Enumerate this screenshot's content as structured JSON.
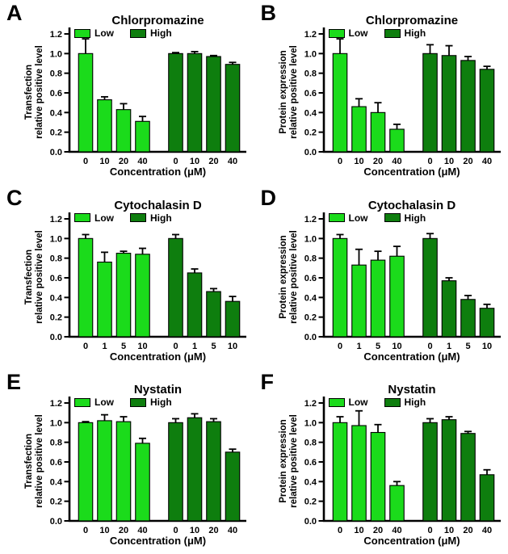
{
  "figure": {
    "background": "#ffffff",
    "colors": {
      "low": "#1bdb1b",
      "high": "#0e7e0e",
      "axis": "#000000",
      "error_bar": "#000000",
      "bar_border": "#000000",
      "text": "#000000"
    },
    "legend": {
      "position": "top-left inside plot",
      "low_label": "Low",
      "high_label": "High"
    },
    "grid": false,
    "ylim": [
      0,
      1.2
    ]
  },
  "chart_data": [
    {
      "type": "bar",
      "letter": "A",
      "title": "Chlorpromazine",
      "ylabel_line1": "Transfection",
      "ylabel_line2": "relative positive level",
      "xlabel": "Concentration (μM)",
      "categories": [
        "0",
        "10",
        "20",
        "40"
      ],
      "series": [
        {
          "name": "Low",
          "color_key": "low",
          "values": [
            1.0,
            0.53,
            0.43,
            0.31
          ],
          "errors": [
            0.15,
            0.03,
            0.06,
            0.05
          ]
        },
        {
          "name": "High",
          "color_key": "high",
          "values": [
            1.0,
            1.0,
            0.97,
            0.89
          ],
          "errors": [
            0.01,
            0.02,
            0.01,
            0.02
          ]
        }
      ],
      "ylim": [
        0,
        1.2
      ],
      "yticks": [
        0,
        0.2,
        0.4,
        0.6,
        0.8,
        1.0,
        1.2
      ]
    },
    {
      "type": "bar",
      "letter": "B",
      "title": "Chlorpromazine",
      "ylabel_line1": "Protein expression",
      "ylabel_line2": "relative positive level",
      "xlabel": "Concentration (μM)",
      "categories": [
        "0",
        "10",
        "20",
        "40"
      ],
      "series": [
        {
          "name": "Low",
          "color_key": "low",
          "values": [
            1.0,
            0.46,
            0.4,
            0.23
          ],
          "errors": [
            0.15,
            0.08,
            0.1,
            0.05
          ]
        },
        {
          "name": "High",
          "color_key": "high",
          "values": [
            1.0,
            0.98,
            0.93,
            0.84
          ],
          "errors": [
            0.09,
            0.1,
            0.04,
            0.03
          ]
        }
      ],
      "ylim": [
        0,
        1.2
      ],
      "yticks": [
        0,
        0.2,
        0.4,
        0.6,
        0.8,
        1.0,
        1.2
      ]
    },
    {
      "type": "bar",
      "letter": "C",
      "title": "Cytochalasin D",
      "ylabel_line1": "Transfection",
      "ylabel_line2": "relative positive level",
      "xlabel": "Concentration (μM)",
      "categories": [
        "0",
        "1",
        "5",
        "10"
      ],
      "series": [
        {
          "name": "Low",
          "color_key": "low",
          "values": [
            1.0,
            0.76,
            0.85,
            0.84
          ],
          "errors": [
            0.04,
            0.1,
            0.02,
            0.06
          ]
        },
        {
          "name": "High",
          "color_key": "high",
          "values": [
            1.0,
            0.65,
            0.46,
            0.36
          ],
          "errors": [
            0.04,
            0.04,
            0.03,
            0.05
          ]
        }
      ],
      "ylim": [
        0,
        1.2
      ],
      "yticks": [
        0,
        0.2,
        0.4,
        0.6,
        0.8,
        1.0,
        1.2
      ]
    },
    {
      "type": "bar",
      "letter": "D",
      "title": "Cytochalasin D",
      "ylabel_line1": "Protein expression",
      "ylabel_line2": "relative positive level",
      "xlabel": "Concentration (μM)",
      "categories": [
        "0",
        "1",
        "5",
        "10"
      ],
      "series": [
        {
          "name": "Low",
          "color_key": "low",
          "values": [
            1.0,
            0.73,
            0.78,
            0.82
          ],
          "errors": [
            0.04,
            0.16,
            0.09,
            0.1
          ]
        },
        {
          "name": "High",
          "color_key": "high",
          "values": [
            1.0,
            0.57,
            0.38,
            0.29
          ],
          "errors": [
            0.05,
            0.03,
            0.04,
            0.04
          ]
        }
      ],
      "ylim": [
        0,
        1.2
      ],
      "yticks": [
        0,
        0.2,
        0.4,
        0.6,
        0.8,
        1.0,
        1.2
      ]
    },
    {
      "type": "bar",
      "letter": "E",
      "title": "Nystatin",
      "ylabel_line1": "Transfection",
      "ylabel_line2": "relative positive level",
      "xlabel": "Concentration (μM)",
      "categories": [
        "0",
        "10",
        "20",
        "40"
      ],
      "series": [
        {
          "name": "Low",
          "color_key": "low",
          "values": [
            1.0,
            1.02,
            1.01,
            0.79
          ],
          "errors": [
            0.01,
            0.06,
            0.05,
            0.05
          ]
        },
        {
          "name": "High",
          "color_key": "high",
          "values": [
            1.0,
            1.05,
            1.01,
            0.7
          ],
          "errors": [
            0.04,
            0.04,
            0.03,
            0.03
          ]
        }
      ],
      "ylim": [
        0,
        1.2
      ],
      "yticks": [
        0,
        0.2,
        0.4,
        0.6,
        0.8,
        1.0,
        1.2
      ]
    },
    {
      "type": "bar",
      "letter": "F",
      "title": "Nystatin",
      "ylabel_line1": "Protein expression",
      "ylabel_line2": "relative positive level",
      "xlabel": "Concentration (μM)",
      "categories": [
        "0",
        "10",
        "20",
        "40"
      ],
      "series": [
        {
          "name": "Low",
          "color_key": "low",
          "values": [
            1.0,
            0.97,
            0.9,
            0.36
          ],
          "errors": [
            0.06,
            0.15,
            0.08,
            0.04
          ]
        },
        {
          "name": "High",
          "color_key": "high",
          "values": [
            1.0,
            1.03,
            0.89,
            0.47
          ],
          "errors": [
            0.04,
            0.03,
            0.02,
            0.05
          ]
        }
      ],
      "ylim": [
        0,
        1.2
      ],
      "yticks": [
        0,
        0.2,
        0.4,
        0.6,
        0.8,
        1.0,
        1.2
      ]
    }
  ]
}
